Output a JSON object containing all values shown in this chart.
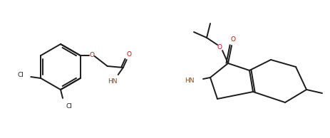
{
  "bg_color": "#ffffff",
  "line_color": "#1a1a1a",
  "line_width": 1.4,
  "figsize": [
    4.64,
    1.94
  ],
  "dpi": 100,
  "atom_colors": {
    "O": "#cc0000",
    "S": "#cc6600",
    "N": "#8b4513",
    "Cl": "#1a1a1a",
    "C": "#1a1a1a"
  }
}
